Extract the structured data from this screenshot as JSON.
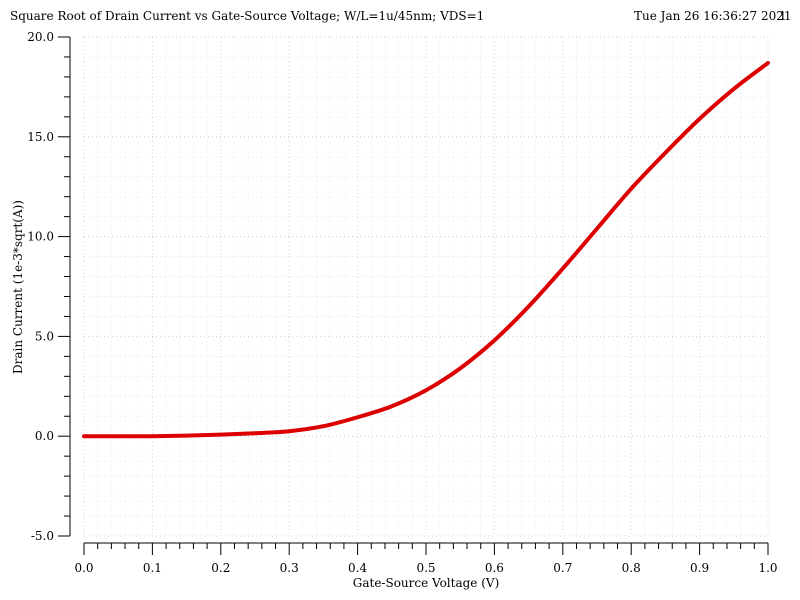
{
  "header": {
    "title": "Square Root of Drain Current vs Gate-Source Voltage; W/L=1u/45nm; VDS=1",
    "date": "Tue Jan 26 16:36:27 2021",
    "page_number": "1"
  },
  "colors": {
    "series": "#dd0000",
    "grid": "#c8c8c8",
    "axis": "#000000"
  },
  "chart_data": {
    "type": "line",
    "title": "Square Root of Drain Current vs Gate-Source Voltage; W/L=1u/45nm; VDS=1",
    "xlabel": "Gate-Source Voltage (V)",
    "ylabel": "Drain Current (1e-3*sqrt(A))",
    "xlim": [
      0.0,
      1.0
    ],
    "ylim": [
      -5.0,
      20.0
    ],
    "x_ticks": [
      "0.0",
      "0.1",
      "0.2",
      "0.3",
      "0.4",
      "0.5",
      "0.6",
      "0.7",
      "0.8",
      "0.9",
      "1.0"
    ],
    "y_ticks": [
      "-5.0",
      "0.0",
      "5.0",
      "10.0",
      "15.0",
      "20.0"
    ],
    "grid": true,
    "legend": "none",
    "series": [
      {
        "x": [
          0.0,
          0.05,
          0.1,
          0.15,
          0.2,
          0.25,
          0.3,
          0.35,
          0.4,
          0.45,
          0.5,
          0.55,
          0.6,
          0.65,
          0.7,
          0.75,
          0.8,
          0.85,
          0.9,
          0.95,
          1.0
        ],
        "values": [
          0.0,
          0.0,
          0.0,
          0.03,
          0.08,
          0.15,
          0.25,
          0.5,
          0.95,
          1.5,
          2.3,
          3.4,
          4.8,
          6.5,
          8.4,
          10.4,
          12.4,
          14.2,
          15.9,
          17.4,
          18.7
        ]
      }
    ]
  }
}
